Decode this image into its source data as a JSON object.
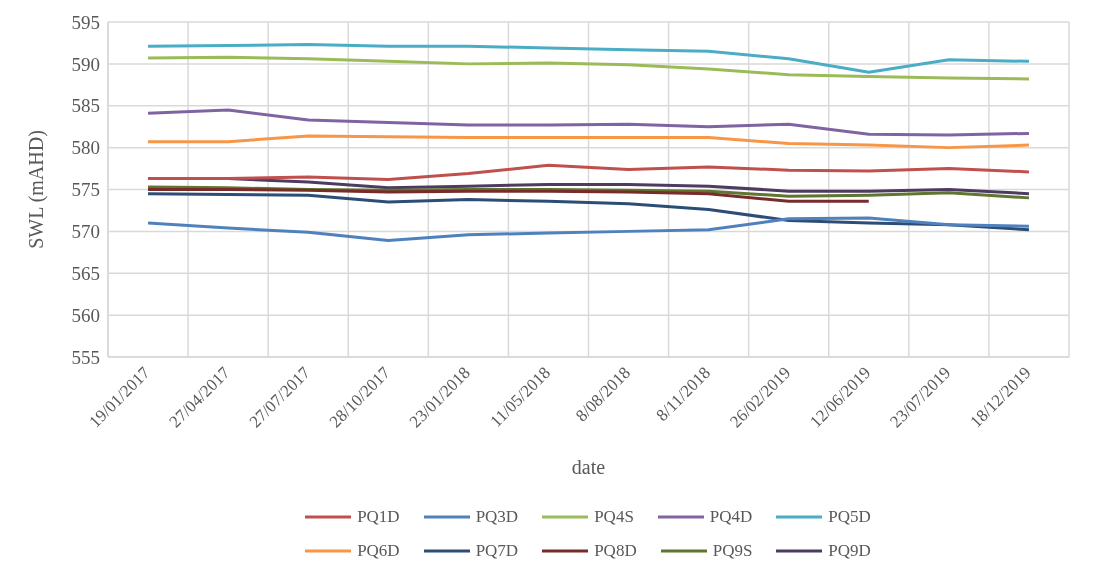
{
  "chart_data": {
    "type": "line",
    "xlabel": "date",
    "ylabel": "SWL (mAHD)",
    "categories": [
      "19/01/2017",
      "27/04/2017",
      "27/07/2017",
      "28/10/2017",
      "23/01/2018",
      "11/05/2018",
      "8/08/2018",
      "8/11/2018",
      "26/02/2019",
      "12/06/2019",
      "23/07/2019",
      "18/12/2019"
    ],
    "ylim": [
      555,
      595
    ],
    "yticks": [
      555,
      560,
      565,
      570,
      575,
      580,
      585,
      590,
      595
    ],
    "grid": true,
    "legend": "bottom",
    "marker": "none",
    "line_style": "solid",
    "series": [
      {
        "name": "PQ1D",
        "color": "#c0504d",
        "values": [
          576.3,
          576.3,
          576.5,
          576.2,
          576.9,
          577.9,
          577.4,
          577.7,
          577.3,
          577.2,
          577.5,
          577.1
        ]
      },
      {
        "name": "PQ3D",
        "color": "#4f81bd",
        "values": [
          571.0,
          570.4,
          569.9,
          568.9,
          569.6,
          569.8,
          570.0,
          570.2,
          571.5,
          571.6,
          570.8,
          570.6
        ]
      },
      {
        "name": "PQ4S",
        "color": "#9bbb59",
        "values": [
          590.7,
          590.8,
          590.6,
          590.3,
          590.0,
          590.1,
          589.9,
          589.4,
          588.7,
          588.5,
          588.3,
          588.2
        ]
      },
      {
        "name": "PQ4D",
        "color": "#8064a2",
        "values": [
          584.1,
          584.5,
          583.3,
          583.0,
          582.7,
          582.7,
          582.8,
          582.5,
          582.8,
          581.6,
          581.5,
          581.7
        ]
      },
      {
        "name": "PQ5D",
        "color": "#4bacc6",
        "values": [
          592.1,
          592.2,
          592.3,
          592.1,
          592.1,
          591.9,
          591.7,
          591.5,
          590.6,
          589.0,
          590.5,
          590.3
        ]
      },
      {
        "name": "PQ6D",
        "color": "#f79646",
        "values": [
          580.7,
          580.7,
          581.4,
          581.3,
          581.2,
          581.2,
          581.2,
          581.2,
          580.5,
          580.3,
          580.0,
          580.3
        ]
      },
      {
        "name": "PQ7D",
        "color": "#2c4d75",
        "values": [
          574.5,
          574.4,
          574.3,
          573.5,
          573.8,
          573.6,
          573.3,
          572.6,
          571.3,
          571.0,
          570.8,
          570.2
        ]
      },
      {
        "name": "PQ8D",
        "color": "#772c2a",
        "values": [
          575.0,
          575.0,
          574.9,
          574.7,
          574.8,
          574.8,
          574.7,
          574.5,
          573.6,
          573.6,
          null,
          null
        ]
      },
      {
        "name": "PQ9S",
        "color": "#5f7530",
        "values": [
          575.3,
          575.2,
          575.0,
          574.9,
          575.0,
          575.0,
          574.9,
          574.8,
          574.2,
          574.3,
          574.6,
          574.0
        ]
      },
      {
        "name": "PQ9D",
        "color": "#4d3b62",
        "values": [
          576.3,
          576.3,
          575.9,
          575.2,
          575.4,
          575.6,
          575.6,
          575.4,
          574.8,
          574.8,
          575.0,
          574.5
        ]
      }
    ]
  }
}
